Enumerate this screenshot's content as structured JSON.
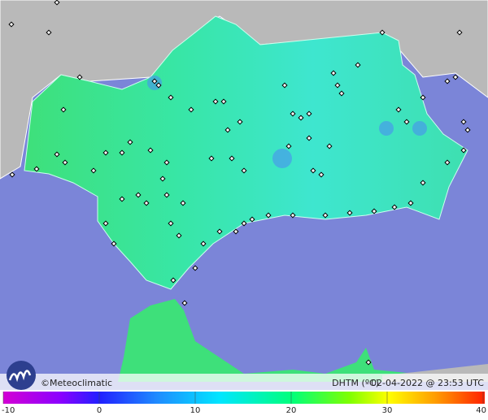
{
  "brand": "©Meteoclimatic",
  "legend_label": "DHTM (ºC)",
  "timestamp": "02-04-2022 @ 23:53 UTC",
  "colorbar": {
    "range": [
      -10,
      40
    ],
    "ticks": [
      -10,
      0,
      10,
      20,
      30,
      40
    ]
  }
}
